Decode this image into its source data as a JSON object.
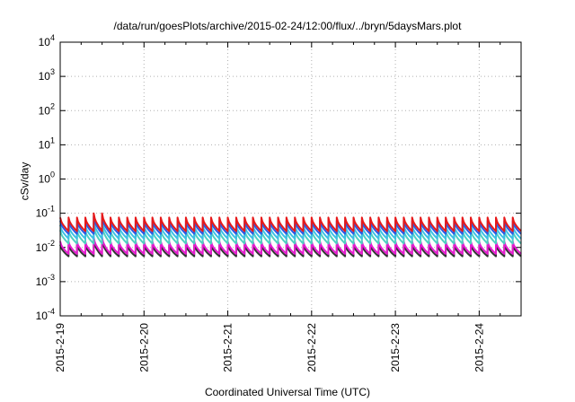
{
  "chart_data": {
    "type": "line",
    "title": "/data/run/goesPlots/archive/2015-02-24/12:00/flux/../bryn/5daysMars.plot",
    "xlabel": "Coordinated Universal Time (UTC)",
    "ylabel": "cSv/day",
    "yscale": "log",
    "ylim": [
      0.0001,
      10000
    ],
    "y_ticks": [
      {
        "base": "10",
        "exp": "-4"
      },
      {
        "base": "10",
        "exp": "-3"
      },
      {
        "base": "10",
        "exp": "-2"
      },
      {
        "base": "10",
        "exp": "-1"
      },
      {
        "base": "10",
        "exp": "0"
      },
      {
        "base": "10",
        "exp": "1"
      },
      {
        "base": "10",
        "exp": "2"
      },
      {
        "base": "10",
        "exp": "3"
      },
      {
        "base": "10",
        "exp": "4"
      }
    ],
    "x_ticks": [
      "2015-2-19",
      "2015-2-20",
      "2015-2-21",
      "2015-2-22",
      "2015-2-23",
      "2015-2-24"
    ],
    "xlim": [
      "2015-02-19 00:00",
      "2015-02-24 12:00"
    ],
    "grid": true,
    "series_style": "sawtooth, ~10 cycles per day (each series peaks then decays within each cycle)",
    "series": [
      {
        "color": "#e6191a",
        "peak": 0.075,
        "trough": 0.03
      },
      {
        "color": "#2b5ae6",
        "peak": 0.06,
        "trough": 0.025
      },
      {
        "color": "#3cc0e6",
        "peak": 0.045,
        "trough": 0.018
      },
      {
        "color": "#4fd0c0",
        "peak": 0.032,
        "trough": 0.013
      },
      {
        "color": "#e61ad0",
        "peak": 0.015,
        "trough": 0.0065
      },
      {
        "color": "#333333",
        "peak": 0.012,
        "trough": 0.0055
      }
    ]
  }
}
